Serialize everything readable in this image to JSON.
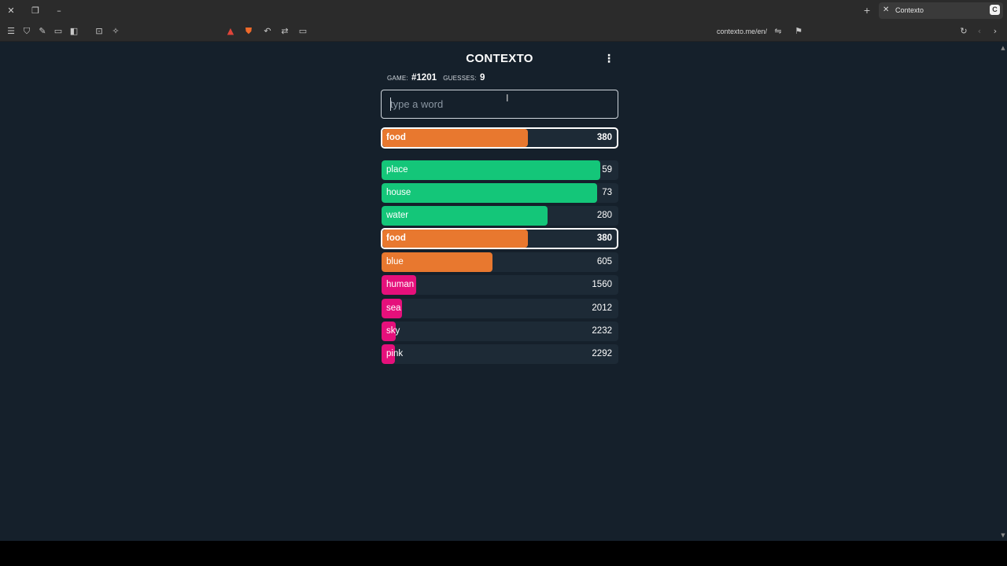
{
  "browser": {
    "tab_title": "Contexto",
    "tab_favicon": "C",
    "url": "contexto.me/en/",
    "icons": [
      "close-icon",
      "restore-icon",
      "minimize-icon",
      "new-tab-icon",
      "menu-icon",
      "shield-icon",
      "pen-icon",
      "tabs-icon",
      "sidebar-icon",
      "screenshot-icon",
      "extensions-icon",
      "brave-rewards-icon",
      "brave-shield-icon",
      "undo-icon",
      "translate-icon",
      "cast-icon",
      "reader-icon",
      "bookmark-icon",
      "reload-icon",
      "back-icon",
      "forward-icon"
    ]
  },
  "app": {
    "title": "CONTEXTO",
    "game_label": "GAME:",
    "game_value": "#1201",
    "guesses_label": "GUESSES:",
    "guesses_value": "9",
    "input_placeholder": "type a word",
    "input_value": ""
  },
  "colors": {
    "green": "#14c679",
    "orange": "#e8782f",
    "pink": "#e5107b",
    "bar_bg": "#1d2a36",
    "page_bg": "#15202b"
  },
  "last_guess": {
    "word": "food",
    "rank": "380",
    "fill": 0.62,
    "color": "orange"
  },
  "guesses": [
    {
      "word": "place",
      "rank": "59",
      "fill": 0.925,
      "color": "green"
    },
    {
      "word": "house",
      "rank": "73",
      "fill": 0.91,
      "color": "green"
    },
    {
      "word": "water",
      "rank": "280",
      "fill": 0.7,
      "color": "green"
    },
    {
      "word": "food",
      "rank": "380",
      "fill": 0.62,
      "color": "orange",
      "highlight": true
    },
    {
      "word": "blue",
      "rank": "605",
      "fill": 0.47,
      "color": "orange"
    },
    {
      "word": "human",
      "rank": "1560",
      "fill": 0.145,
      "color": "pink"
    },
    {
      "word": "sea",
      "rank": "2012",
      "fill": 0.085,
      "color": "pink"
    },
    {
      "word": "sky",
      "rank": "2232",
      "fill": 0.06,
      "color": "pink"
    },
    {
      "word": "pink",
      "rank": "2292",
      "fill": 0.055,
      "color": "pink"
    }
  ]
}
